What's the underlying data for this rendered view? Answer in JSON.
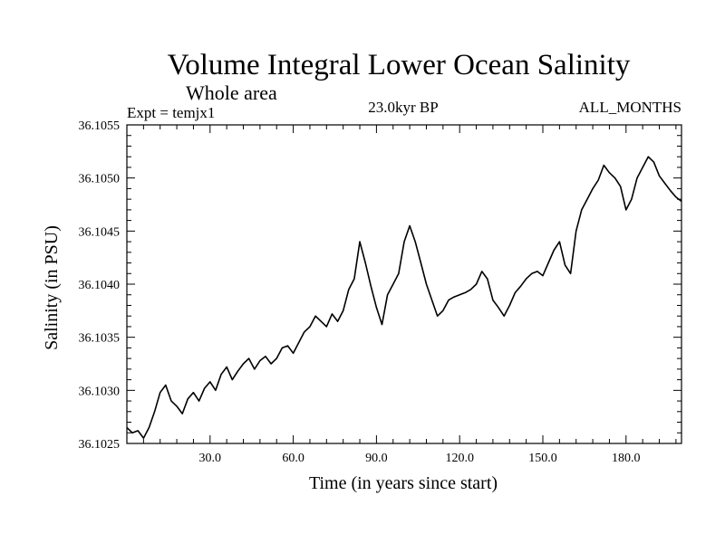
{
  "chart_data": {
    "type": "line",
    "title": "Volume Integral Lower Ocean Salinity",
    "subtitle": "Whole area",
    "experiment_label": "Expt = temjx1",
    "period_label": "23.0kyr BP",
    "season_label": "ALL_MONTHS",
    "xlabel": "Time (in years since start)",
    "ylabel": "Salinity (in PSU)",
    "xlim": [
      0,
      200
    ],
    "ylim": [
      36.1025,
      36.1055
    ],
    "x_ticks": [
      30,
      60,
      90,
      120,
      150,
      180
    ],
    "x_tick_labels": [
      "30.0",
      "60.0",
      "90.0",
      "120.0",
      "150.0",
      "180.0"
    ],
    "y_ticks": [
      36.1025,
      36.103,
      36.1035,
      36.104,
      36.1045,
      36.105,
      36.1055
    ],
    "y_tick_labels": [
      "36.1025",
      "36.1030",
      "36.1035",
      "36.1040",
      "36.1045",
      "36.1050",
      "36.1055"
    ],
    "series": [
      {
        "name": "Salinity",
        "color": "#000000",
        "x": [
          0,
          2,
          4,
          6,
          8,
          10,
          12,
          14,
          16,
          18,
          20,
          22,
          24,
          26,
          28,
          30,
          32,
          34,
          36,
          38,
          40,
          42,
          44,
          46,
          48,
          50,
          52,
          54,
          56,
          58,
          60,
          62,
          64,
          66,
          68,
          70,
          72,
          74,
          76,
          78,
          80,
          82,
          84,
          86,
          88,
          90,
          92,
          94,
          96,
          98,
          100,
          102,
          104,
          106,
          108,
          110,
          112,
          114,
          116,
          118,
          120,
          122,
          124,
          126,
          128,
          130,
          132,
          134,
          136,
          138,
          140,
          142,
          144,
          146,
          148,
          150,
          152,
          154,
          156,
          158,
          160,
          162,
          164,
          166,
          168,
          170,
          172,
          174,
          176,
          178,
          180,
          182,
          184,
          186,
          188,
          190,
          192,
          194,
          196,
          198,
          200
        ],
        "values": [
          36.10265,
          36.1026,
          36.10262,
          36.10255,
          36.10265,
          36.1028,
          36.10298,
          36.10305,
          36.1029,
          36.10285,
          36.10278,
          36.10292,
          36.10298,
          36.1029,
          36.10302,
          36.10308,
          36.103,
          36.10315,
          36.10322,
          36.1031,
          36.10318,
          36.10325,
          36.1033,
          36.1032,
          36.10328,
          36.10332,
          36.10325,
          36.1033,
          36.1034,
          36.10342,
          36.10335,
          36.10345,
          36.10355,
          36.1036,
          36.1037,
          36.10365,
          36.1036,
          36.10372,
          36.10365,
          36.10375,
          36.10395,
          36.10405,
          36.1044,
          36.1042,
          36.10398,
          36.10378,
          36.10362,
          36.1039,
          36.104,
          36.1041,
          36.1044,
          36.10455,
          36.1044,
          36.1042,
          36.104,
          36.10385,
          36.1037,
          36.10375,
          36.10385,
          36.10388,
          36.1039,
          36.10392,
          36.10395,
          36.104,
          36.10412,
          36.10405,
          36.10385,
          36.10378,
          36.1037,
          36.1038,
          36.10392,
          36.10398,
          36.10405,
          36.1041,
          36.10412,
          36.10408,
          36.1042,
          36.10432,
          36.1044,
          36.10418,
          36.1041,
          36.1045,
          36.1047,
          36.1048,
          36.1049,
          36.10498,
          36.10512,
          36.10505,
          36.105,
          36.10492,
          36.1047,
          36.1048,
          36.105,
          36.1051,
          36.1052,
          36.10515,
          36.10502,
          36.10495,
          36.10488,
          36.10482,
          36.10478
        ]
      }
    ]
  }
}
